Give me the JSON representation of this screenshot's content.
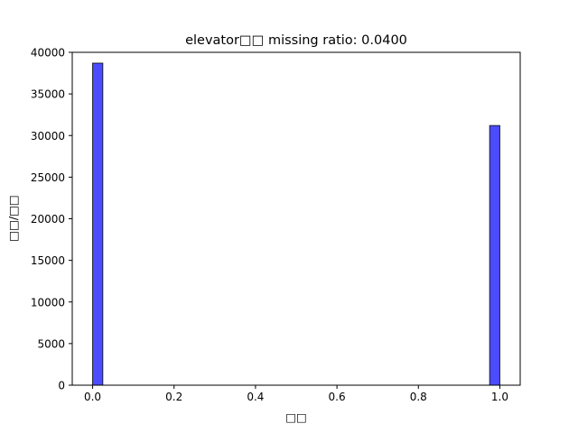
{
  "chart_data": {
    "type": "bar",
    "title": "elevator□□  missing ratio: 0.0400",
    "xlabel": "□□",
    "ylabel": "□□/□□",
    "xlim": [
      -0.05,
      1.05
    ],
    "ylim": [
      0,
      40000
    ],
    "x_ticks": [
      0.0,
      0.2,
      0.4,
      0.6,
      0.8,
      1.0
    ],
    "x_tick_labels": [
      "0.0",
      "0.2",
      "0.4",
      "0.6",
      "0.8",
      "1.0"
    ],
    "y_ticks": [
      0,
      5000,
      10000,
      15000,
      20000,
      25000,
      30000,
      35000,
      40000
    ],
    "y_tick_labels": [
      "0",
      "5000",
      "10000",
      "15000",
      "20000",
      "25000",
      "30000",
      "35000",
      "40000"
    ],
    "bins": [
      {
        "x0": 0.0,
        "x1": 0.025,
        "value": 38700
      },
      {
        "x0": 0.975,
        "x1": 1.0,
        "value": 31200
      }
    ],
    "bar_color": "#0000ff",
    "bar_edge_color": "#000000",
    "bar_alpha": 0.7,
    "grid": false
  }
}
